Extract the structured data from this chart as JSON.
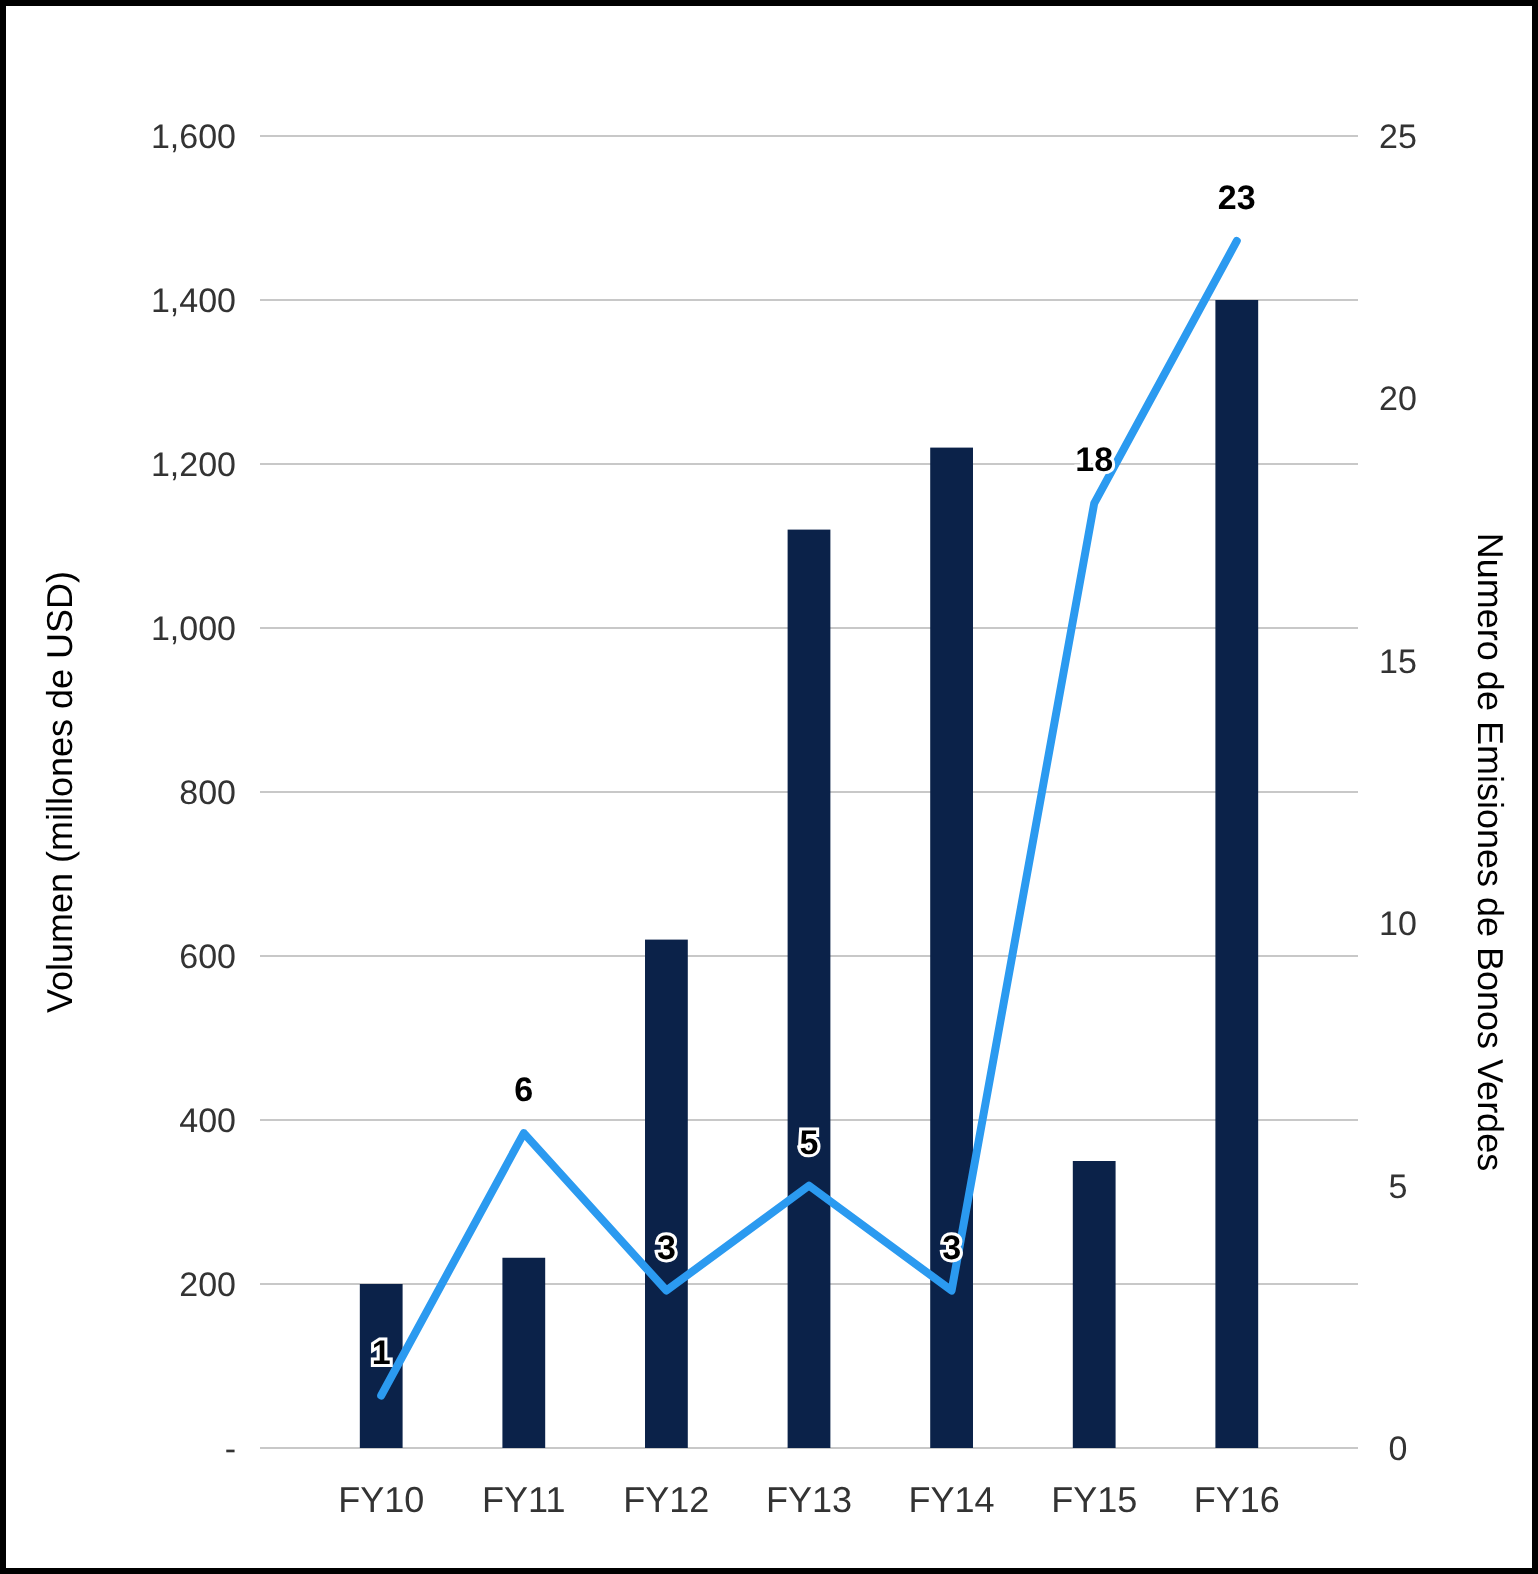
{
  "chart_data": {
    "type": "bar",
    "categories": [
      "FY10",
      "FY11",
      "FY12",
      "FY13",
      "FY14",
      "FY15",
      "FY16"
    ],
    "series": [
      {
        "color": "#0b2249",
        "values": [
          200,
          232,
          620,
          1120,
          1220,
          350,
          1400
        ]
      },
      {
        "type": "line",
        "axis": "y2",
        "color": "#2b9af0",
        "values": [
          1,
          6,
          3,
          5,
          3,
          18,
          23
        ],
        "value_labels": [
          "1",
          "6",
          "3",
          "5",
          "3",
          "18",
          "23"
        ]
      }
    ],
    "ylabel": "Volumen (millones de USD)",
    "y2label": "Numero de Emisiones de Bonos Verdes",
    "ylim": [
      0,
      1600
    ],
    "yticks": [
      {
        "value": 0,
        "label": "-"
      },
      {
        "value": 200,
        "label": "200"
      },
      {
        "value": 400,
        "label": "400"
      },
      {
        "value": 600,
        "label": "600"
      },
      {
        "value": 800,
        "label": "800"
      },
      {
        "value": 1000,
        "label": "1,000"
      },
      {
        "value": 1200,
        "label": "1,200"
      },
      {
        "value": 1400,
        "label": "1,400"
      },
      {
        "value": 1600,
        "label": "1,600"
      }
    ],
    "y2lim": [
      0,
      25
    ],
    "y2ticks": [
      0,
      5,
      10,
      15,
      20,
      25
    ],
    "grid": "y",
    "marker": "none",
    "line_style": "solid"
  }
}
